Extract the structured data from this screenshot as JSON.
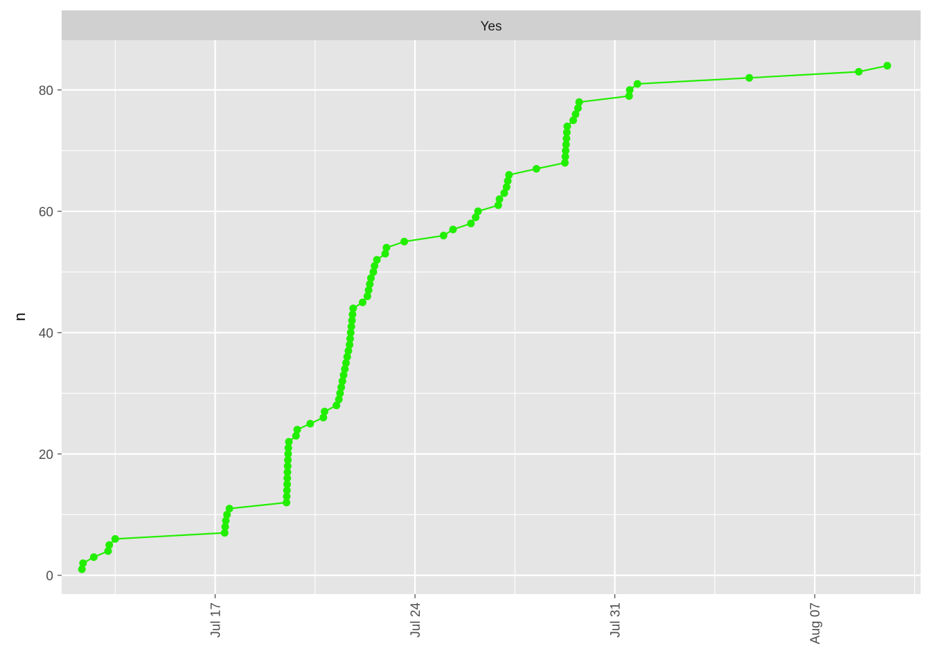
{
  "chart_data": {
    "type": "line",
    "facet_label": "Yes",
    "xlabel": "",
    "ylabel": "n",
    "x_type": "date",
    "xlim": [
      "2021-07-11T15:00",
      "2021-08-10T17:00"
    ],
    "ylim": [
      -3.1,
      88.2
    ],
    "x_ticks": [
      {
        "date": "2021-07-17",
        "label": "Jul 17"
      },
      {
        "date": "2021-07-24",
        "label": "Jul 24"
      },
      {
        "date": "2021-07-31",
        "label": "Jul 31"
      },
      {
        "date": "2021-08-07",
        "label": "Aug 07"
      }
    ],
    "x_minor_ticks": [
      "2021-07-13T12:00",
      "2021-07-20T12:00",
      "2021-07-27T12:00",
      "2021-08-03T12:00",
      "2021-08-10T12:00"
    ],
    "y_ticks": [
      0,
      20,
      40,
      60,
      80
    ],
    "y_minor_ticks": [
      10,
      30,
      50,
      70
    ],
    "grid": true,
    "legend": "none",
    "colors": {
      "series": "#22ee00",
      "panel": "#e5e5e5",
      "strip": "#d0d0d0",
      "grid": "#ffffff",
      "text": "#4d4d4d"
    },
    "series": [
      {
        "x": [
          "2021-07-12T08:00",
          "2021-07-12T09:00",
          "2021-07-12T18:00",
          "2021-07-13T06:00",
          "2021-07-13T07:00",
          "2021-07-13T12:00",
          "2021-07-17T08:00",
          "2021-07-17T08:30",
          "2021-07-17T09:00",
          "2021-07-17T10:00",
          "2021-07-17T12:00",
          "2021-07-19T12:00",
          "2021-07-19T12:10",
          "2021-07-19T12:20",
          "2021-07-19T12:30",
          "2021-07-19T12:40",
          "2021-07-19T12:50",
          "2021-07-19T13:00",
          "2021-07-19T13:10",
          "2021-07-19T13:20",
          "2021-07-19T13:30",
          "2021-07-19T14:00",
          "2021-07-19T20:00",
          "2021-07-19T21:00",
          "2021-07-20T08:00",
          "2021-07-20T19:00",
          "2021-07-20T20:00",
          "2021-07-21T06:00",
          "2021-07-21T08:00",
          "2021-07-21T09:00",
          "2021-07-21T10:00",
          "2021-07-21T11:00",
          "2021-07-21T12:00",
          "2021-07-21T13:00",
          "2021-07-21T14:00",
          "2021-07-21T15:00",
          "2021-07-21T16:00",
          "2021-07-21T17:00",
          "2021-07-21T17:30",
          "2021-07-21T18:00",
          "2021-07-21T18:30",
          "2021-07-21T19:00",
          "2021-07-21T19:30",
          "2021-07-21T20:00",
          "2021-07-22T04:00",
          "2021-07-22T08:00",
          "2021-07-22T09:00",
          "2021-07-22T10:00",
          "2021-07-22T11:00",
          "2021-07-22T13:00",
          "2021-07-22T14:00",
          "2021-07-22T16:00",
          "2021-07-22T23:00",
          "2021-07-23T00:00",
          "2021-07-23T15:00",
          "2021-07-25T00:00",
          "2021-07-25T08:00",
          "2021-07-25T23:00",
          "2021-07-26T03:00",
          "2021-07-26T05:00",
          "2021-07-26T22:00",
          "2021-07-26T23:00",
          "2021-07-27T03:00",
          "2021-07-27T05:00",
          "2021-07-27T06:00",
          "2021-07-27T07:00",
          "2021-07-28T06:00",
          "2021-07-29T06:00",
          "2021-07-29T06:20",
          "2021-07-29T06:40",
          "2021-07-29T07:00",
          "2021-07-29T07:20",
          "2021-07-29T07:40",
          "2021-07-29T08:00",
          "2021-07-29T13:00",
          "2021-07-29T15:00",
          "2021-07-29T17:00",
          "2021-07-29T18:00",
          "2021-07-31T12:00",
          "2021-07-31T12:30",
          "2021-07-31T19:00",
          "2021-08-04T17:00",
          "2021-08-08T13:00",
          "2021-08-09T13:00"
        ],
        "y": [
          1,
          2,
          3,
          4,
          5,
          6,
          7,
          8,
          9,
          10,
          11,
          12,
          13,
          14,
          15,
          16,
          17,
          18,
          19,
          20,
          21,
          22,
          23,
          24,
          25,
          26,
          27,
          28,
          29,
          30,
          31,
          32,
          33,
          34,
          35,
          36,
          37,
          38,
          39,
          40,
          41,
          42,
          43,
          44,
          45,
          46,
          47,
          48,
          49,
          50,
          51,
          52,
          53,
          54,
          55,
          56,
          57,
          58,
          59,
          60,
          61,
          62,
          63,
          64,
          65,
          66,
          67,
          68,
          69,
          70,
          71,
          72,
          73,
          74,
          75,
          76,
          77,
          78,
          79,
          80,
          81,
          82,
          83,
          84
        ]
      }
    ]
  }
}
